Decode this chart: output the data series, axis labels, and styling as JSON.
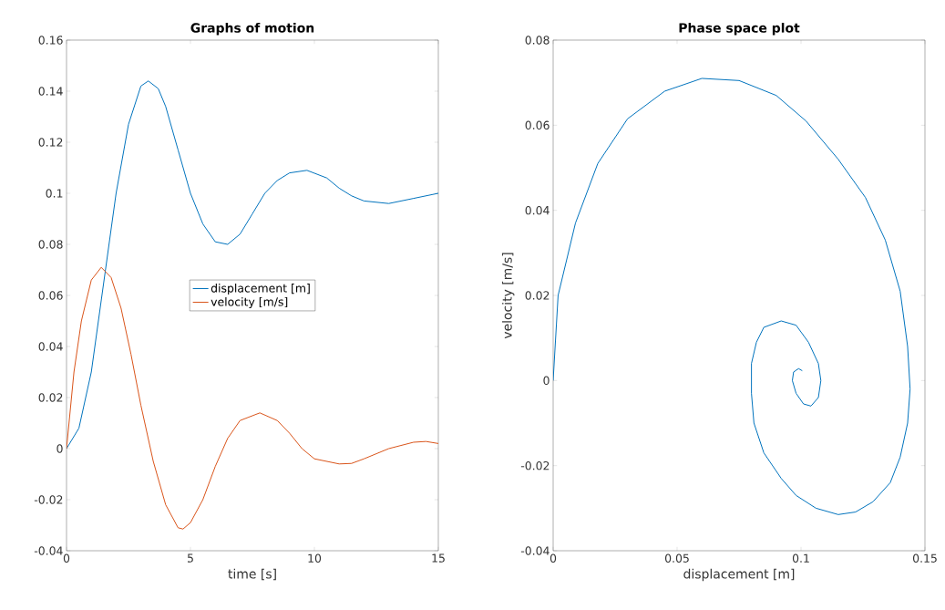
{
  "chart_data": [
    {
      "type": "line",
      "title": "Graphs of motion",
      "xlabel": "time [s]",
      "xlim": [
        0,
        15
      ],
      "ylim": [
        -0.04,
        0.16
      ],
      "xticks": [
        0,
        5,
        10,
        15
      ],
      "yticks": [
        -0.04,
        -0.02,
        0,
        0.02,
        0.04,
        0.06,
        0.08,
        0.1,
        0.12,
        0.14,
        0.16
      ],
      "legend": "center",
      "series": [
        {
          "name": "displacement [m]",
          "color": "#0072bd",
          "x": [
            0,
            0.5,
            1,
            1.5,
            2,
            2.5,
            3,
            3.3,
            3.7,
            4,
            4.5,
            5,
            5.5,
            6,
            6.5,
            7,
            7.5,
            8,
            8.5,
            9,
            9.7,
            10.5,
            11,
            11.5,
            12,
            13,
            14,
            15
          ],
          "values": [
            0,
            0.008,
            0.03,
            0.065,
            0.1,
            0.127,
            0.142,
            0.144,
            0.141,
            0.134,
            0.117,
            0.1,
            0.088,
            0.081,
            0.08,
            0.084,
            0.092,
            0.1,
            0.105,
            0.108,
            0.109,
            0.106,
            0.102,
            0.099,
            0.097,
            0.096,
            0.098,
            0.1
          ]
        },
        {
          "name": "velocity [m/s]",
          "color": "#d95319",
          "x": [
            0,
            0.3,
            0.6,
            1,
            1.4,
            1.8,
            2.2,
            2.6,
            3,
            3.5,
            4,
            4.5,
            4.7,
            5,
            5.5,
            6,
            6.5,
            7,
            7.8,
            8.5,
            9,
            9.5,
            10,
            11,
            11.5,
            12,
            13,
            14,
            14.5,
            15
          ],
          "values": [
            0,
            0.03,
            0.05,
            0.066,
            0.071,
            0.067,
            0.055,
            0.037,
            0.017,
            -0.005,
            -0.022,
            -0.031,
            -0.0315,
            -0.029,
            -0.02,
            -0.007,
            0.004,
            0.011,
            0.014,
            0.011,
            0.006,
            0,
            -0.004,
            -0.006,
            -0.0058,
            -0.004,
            0,
            0.0025,
            0.0028,
            0.002
          ]
        }
      ]
    },
    {
      "type": "line",
      "title": "Phase space plot",
      "xlabel": "displacement [m]",
      "ylabel": "velocity [m/s]",
      "xlim": [
        0,
        0.15
      ],
      "ylim": [
        -0.04,
        0.08
      ],
      "xticks": [
        0,
        0.05,
        0.1,
        0.15
      ],
      "yticks": [
        -0.04,
        -0.02,
        0,
        0.02,
        0.04,
        0.06,
        0.08
      ],
      "series": [
        {
          "color": "#0072bd",
          "x": [
            0,
            0.002,
            0.009,
            0.018,
            0.03,
            0.045,
            0.06,
            0.075,
            0.09,
            0.102,
            0.115,
            0.126,
            0.134,
            0.14,
            0.143,
            0.144,
            0.143,
            0.14,
            0.136,
            0.129,
            0.122,
            0.115,
            0.106,
            0.098,
            0.092,
            0.085,
            0.081,
            0.08,
            0.08,
            0.082,
            0.085,
            0.092,
            0.098,
            0.103,
            0.107,
            0.108,
            0.107,
            0.104,
            0.101,
            0.098,
            0.0965,
            0.097,
            0.099,
            0.1005
          ],
          "values": [
            0,
            0.02,
            0.037,
            0.051,
            0.0615,
            0.068,
            0.071,
            0.0705,
            0.067,
            0.061,
            0.052,
            0.043,
            0.033,
            0.021,
            0.008,
            -0.002,
            -0.01,
            -0.018,
            -0.024,
            -0.0285,
            -0.0309,
            -0.0315,
            -0.03,
            -0.027,
            -0.023,
            -0.017,
            -0.01,
            -0.003,
            0.004,
            0.009,
            0.0125,
            0.014,
            0.013,
            0.009,
            0.004,
            0,
            -0.004,
            -0.006,
            -0.0055,
            -0.003,
            0,
            0.002,
            0.0028,
            0.0023
          ]
        }
      ]
    }
  ]
}
